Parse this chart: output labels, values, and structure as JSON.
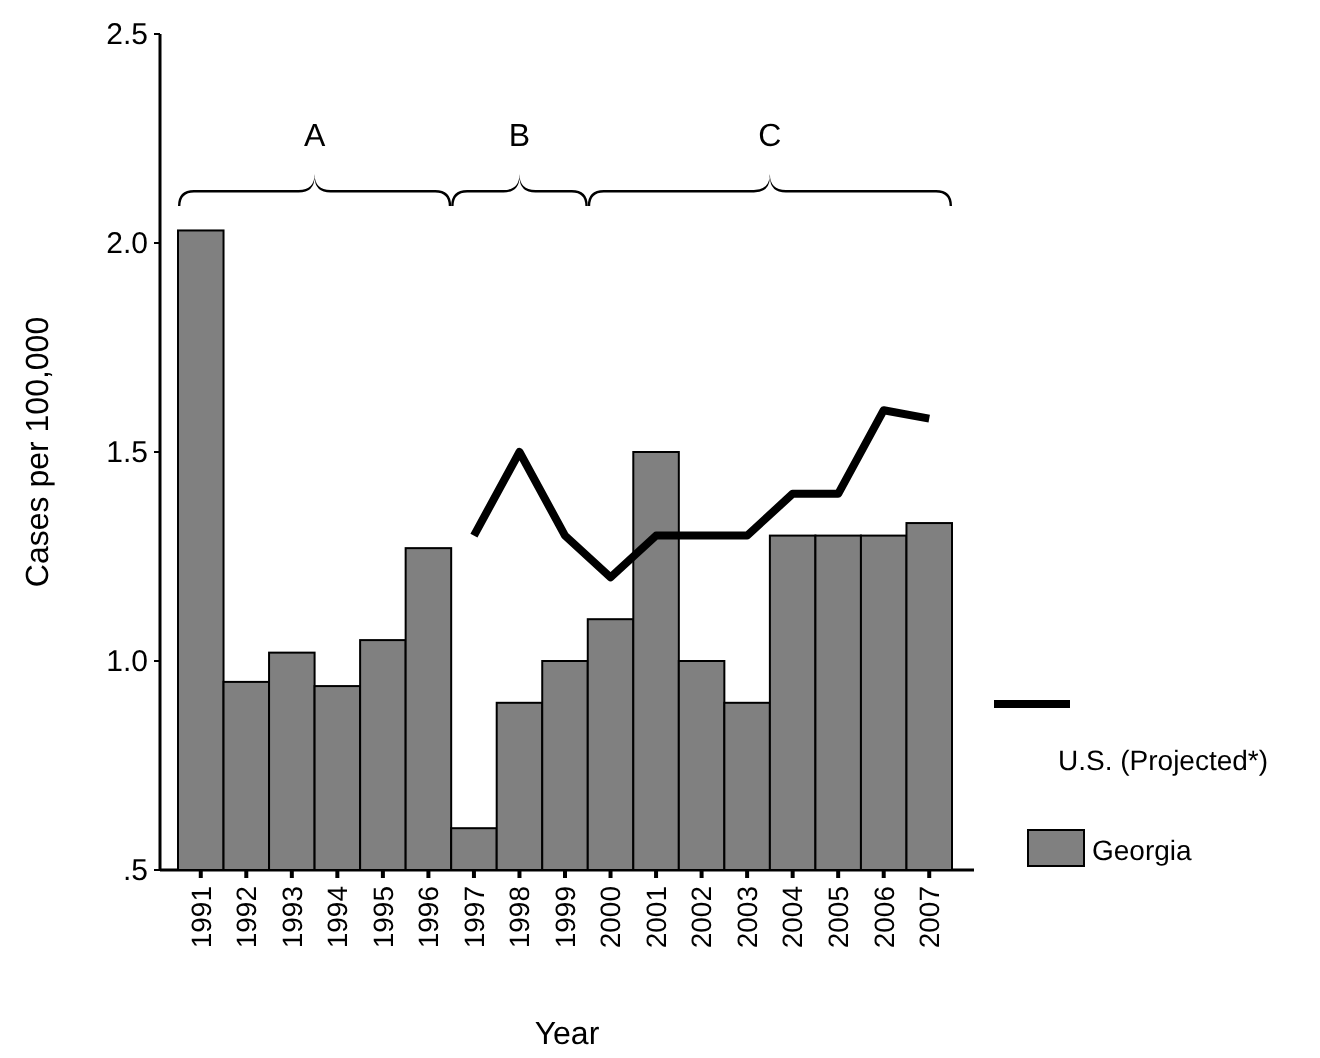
{
  "chart_data": {
    "type": "bar",
    "xlabel": "Year",
    "ylabel": "Cases per 100,000",
    "categories": [
      "1991",
      "1992",
      "1993",
      "1994",
      "1995",
      "1996",
      "1997",
      "1998",
      "1999",
      "2000",
      "2001",
      "2002",
      "2003",
      "2004",
      "2005",
      "2006",
      "2007"
    ],
    "series": [
      {
        "name": "Georgia",
        "color": "#808080",
        "values": [
          2.03,
          0.95,
          1.02,
          0.94,
          1.05,
          1.27,
          0.6,
          0.9,
          1.0,
          1.1,
          1.5,
          1.0,
          0.9,
          1.3,
          1.3,
          1.3,
          1.33
        ]
      },
      {
        "name": "U.S. (Projected*)",
        "type": "line",
        "color": "#000000",
        "values": [
          null,
          null,
          null,
          null,
          null,
          null,
          1.3,
          1.5,
          1.3,
          1.2,
          1.3,
          1.3,
          1.3,
          1.4,
          1.4,
          1.6,
          1.58
        ]
      }
    ],
    "ylim": [
      0.5,
      2.5
    ],
    "yticks": [
      {
        "value": 0.5,
        "label": ".5"
      },
      {
        "value": 1.0,
        "label": "1.0"
      },
      {
        "value": 1.5,
        "label": "1.5"
      },
      {
        "value": 2.0,
        "label": "2.0"
      },
      {
        "value": 2.5,
        "label": "2.5"
      }
    ],
    "annotations": [
      "A",
      "B",
      "C"
    ],
    "grid": false,
    "legend": "right",
    "marker": "none",
    "line_style": "solid"
  }
}
